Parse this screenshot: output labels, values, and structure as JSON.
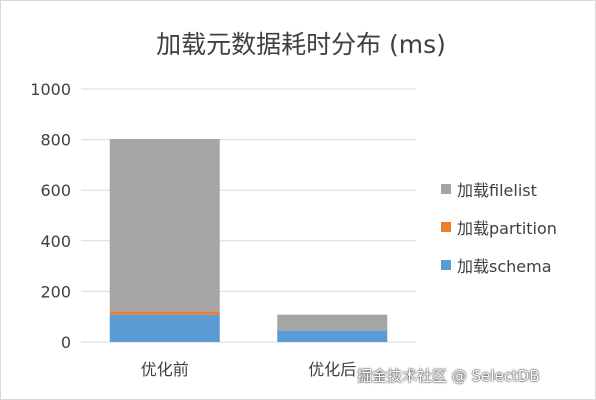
{
  "chart_data": {
    "type": "bar",
    "stacked": true,
    "title": "加载元数据耗时分布 (ms)",
    "xlabel": "",
    "ylabel": "",
    "categories": [
      "优化前",
      "优化后"
    ],
    "series": [
      {
        "name": "加载schema",
        "color": "#5b9bd5",
        "values": [
          108,
          45
        ]
      },
      {
        "name": "加载partition",
        "color": "#ed7d31",
        "values": [
          12,
          0
        ]
      },
      {
        "name": "加载filelist",
        "color": "#a5a5a5",
        "values": [
          682,
          63
        ]
      }
    ],
    "ylim": [
      0,
      1000
    ],
    "yticks": [
      0,
      200,
      400,
      600,
      800,
      1000
    ],
    "grid": true,
    "legend": "right"
  },
  "watermark": "掘金技术社区 @ SelectDB"
}
